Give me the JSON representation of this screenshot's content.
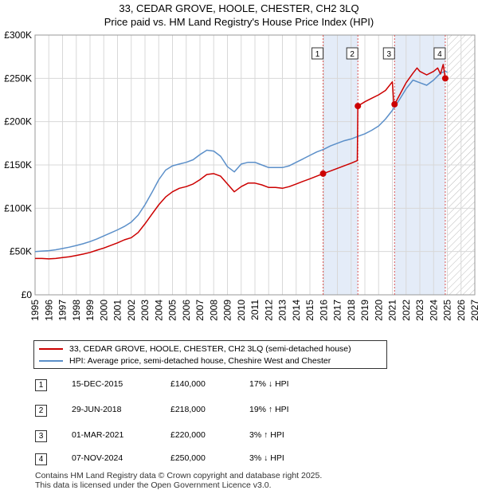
{
  "title_line1": "33, CEDAR GROVE, HOOLE, CHESTER, CH2 3LQ",
  "title_line2": "Price paid vs. HM Land Registry's House Price Index (HPI)",
  "colors": {
    "property": "#cc0000",
    "hpi": "#5b8fc9",
    "highlight": "#e4ecf8",
    "vline": "#d95555",
    "grid": "#d8d8d8",
    "hatch": "#bbbbbb"
  },
  "legend": {
    "property_label": "33, CEDAR GROVE, HOOLE, CHESTER, CH2 3LQ (semi-detached house)",
    "hpi_label": "HPI: Average price, semi-detached house, Cheshire West and Chester"
  },
  "transactions": [
    {
      "num": "1",
      "date": "15-DEC-2015",
      "price": "£140,000",
      "hpi": "17% ↓ HPI"
    },
    {
      "num": "2",
      "date": "29-JUN-2018",
      "price": "£218,000",
      "hpi": "19% ↑ HPI"
    },
    {
      "num": "3",
      "date": "01-MAR-2021",
      "price": "£220,000",
      "hpi": "3% ↑ HPI"
    },
    {
      "num": "4",
      "date": "07-NOV-2024",
      "price": "£250,000",
      "hpi": "3% ↓ HPI"
    }
  ],
  "footer_line1": "Contains HM Land Registry data © Crown copyright and database right 2025.",
  "footer_line2": "This data is licensed under the Open Government Licence v3.0.",
  "chart_data": {
    "type": "line",
    "title": "33, CEDAR GROVE, HOOLE, CHESTER, CH2 3LQ / Price paid vs. HM Land Registry's House Price Index (HPI)",
    "xlabel": "",
    "ylabel": "",
    "xlim": [
      1995,
      2027
    ],
    "ylim": [
      0,
      300000
    ],
    "x_ticks": [
      1995,
      1996,
      1997,
      1998,
      1999,
      2000,
      2001,
      2002,
      2003,
      2004,
      2005,
      2006,
      2007,
      2008,
      2009,
      2010,
      2011,
      2012,
      2013,
      2014,
      2015,
      2016,
      2017,
      2018,
      2019,
      2020,
      2021,
      2022,
      2023,
      2024,
      2025,
      2026,
      2027
    ],
    "y_ticks": [
      0,
      50000,
      100000,
      150000,
      200000,
      250000,
      300000
    ],
    "y_tick_labels": [
      "£0",
      "£50K",
      "£100K",
      "£150K",
      "£200K",
      "£250K",
      "£300K"
    ],
    "grid": true,
    "future_hatch_from": 2025.0,
    "highlight_ranges": [
      [
        2015.96,
        2018.49
      ],
      [
        2021.16,
        2024.85
      ]
    ],
    "markers": [
      {
        "label": "1",
        "x": 2015.96,
        "y": 140000
      },
      {
        "label": "2",
        "x": 2018.49,
        "y": 218000
      },
      {
        "label": "3",
        "x": 2021.16,
        "y": 220000
      },
      {
        "label": "4",
        "x": 2024.85,
        "y": 250000
      }
    ],
    "series": [
      {
        "name": "33, CEDAR GROVE, HOOLE, CHESTER, CH2 3LQ (semi-detached house)",
        "x": [
          1995.0,
          1995.5,
          1996.0,
          1996.5,
          1997.0,
          1997.5,
          1998.0,
          1998.5,
          1999.0,
          1999.5,
          2000.0,
          2000.5,
          2001.0,
          2001.5,
          2002.0,
          2002.5,
          2003.0,
          2003.5,
          2004.0,
          2004.5,
          2005.0,
          2005.5,
          2006.0,
          2006.5,
          2007.0,
          2007.5,
          2008.0,
          2008.5,
          2009.0,
          2009.5,
          2010.0,
          2010.5,
          2011.0,
          2011.5,
          2012.0,
          2012.5,
          2013.0,
          2013.5,
          2014.0,
          2014.5,
          2015.0,
          2015.5,
          2015.96,
          2016.5,
          2017.0,
          2017.5,
          2018.0,
          2018.45,
          2018.49,
          2019.0,
          2019.5,
          2020.0,
          2020.5,
          2021.0,
          2021.1,
          2021.16,
          2021.5,
          2022.0,
          2022.5,
          2022.8,
          2023.0,
          2023.5,
          2024.0,
          2024.3,
          2024.5,
          2024.7,
          2024.85
        ],
        "y": [
          42000,
          42000,
          41500,
          42000,
          43000,
          44000,
          45500,
          47000,
          49000,
          51500,
          54000,
          57000,
          60000,
          63500,
          66000,
          72000,
          82000,
          93000,
          104000,
          113000,
          119000,
          123000,
          125000,
          128000,
          133000,
          139000,
          140000,
          137000,
          128000,
          119000,
          125000,
          129000,
          129000,
          127000,
          124000,
          124000,
          123000,
          125000,
          128000,
          131000,
          134000,
          137000,
          140000,
          143000,
          146000,
          149000,
          152000,
          155000,
          218000,
          223000,
          227000,
          231000,
          236000,
          246000,
          222000,
          220000,
          230000,
          245000,
          256000,
          262000,
          258000,
          254000,
          258000,
          262000,
          255000,
          266000,
          250000
        ]
      },
      {
        "name": "HPI: Average price, semi-detached house, Cheshire West and Chester",
        "x": [
          1995.0,
          1995.5,
          1996.0,
          1996.5,
          1997.0,
          1997.5,
          1998.0,
          1998.5,
          1999.0,
          1999.5,
          2000.0,
          2000.5,
          2001.0,
          2001.5,
          2002.0,
          2002.5,
          2003.0,
          2003.5,
          2004.0,
          2004.5,
          2005.0,
          2005.5,
          2006.0,
          2006.5,
          2007.0,
          2007.5,
          2008.0,
          2008.5,
          2009.0,
          2009.5,
          2010.0,
          2010.5,
          2011.0,
          2011.5,
          2012.0,
          2012.5,
          2013.0,
          2013.5,
          2014.0,
          2014.5,
          2015.0,
          2015.5,
          2016.0,
          2016.5,
          2017.0,
          2017.5,
          2018.0,
          2018.5,
          2019.0,
          2019.5,
          2020.0,
          2020.5,
          2021.0,
          2021.5,
          2022.0,
          2022.5,
          2023.0,
          2023.5,
          2024.0,
          2024.5,
          2024.85,
          2025.0
        ],
        "y": [
          50000,
          50500,
          51000,
          52000,
          53500,
          55000,
          57000,
          59000,
          61500,
          64500,
          68000,
          71500,
          75000,
          79000,
          84000,
          92000,
          104000,
          118000,
          133000,
          144000,
          149000,
          151000,
          153000,
          156000,
          162000,
          167000,
          166000,
          160000,
          148000,
          142000,
          151000,
          153000,
          153000,
          150000,
          147000,
          147000,
          147000,
          149000,
          153000,
          157000,
          161000,
          165000,
          168000,
          172000,
          175000,
          178000,
          180000,
          183000,
          186000,
          190000,
          195000,
          203000,
          213000,
          225000,
          238000,
          248000,
          245000,
          242000,
          248000,
          256000,
          258000,
          257000
        ]
      }
    ]
  }
}
